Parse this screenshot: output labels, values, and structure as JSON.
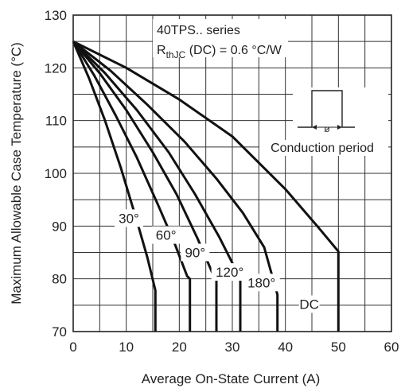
{
  "chart_data": {
    "type": "line",
    "xlabel": "Average On-State Current (A)",
    "ylabel": "Maximum Allowable Case Temperature (°C)",
    "xlim": [
      0,
      60
    ],
    "ylim": [
      70,
      130
    ],
    "xticks": [
      0,
      10,
      20,
      30,
      40,
      50,
      60
    ],
    "yticks": [
      70,
      80,
      90,
      100,
      110,
      120,
      130
    ],
    "grid": true,
    "annotation_title": "40TPS.. series",
    "annotation_rth_main": "R",
    "annotation_rth_sub": "thJC",
    "annotation_rth_rest": " (DC) = 0.6 °C/W",
    "conduction_label": "Conduction period",
    "phi_symbol": "ø",
    "series": [
      {
        "name": "30°",
        "points": [
          [
            0,
            125
          ],
          [
            3,
            118
          ],
          [
            6,
            110
          ],
          [
            9,
            101
          ],
          [
            12,
            91
          ],
          [
            14,
            84
          ],
          [
            15.5,
            77.8
          ],
          [
            15.5,
            70
          ]
        ]
      },
      {
        "name": "60°",
        "points": [
          [
            0,
            125
          ],
          [
            4,
            118.5
          ],
          [
            8,
            111
          ],
          [
            12,
            103
          ],
          [
            16,
            94
          ],
          [
            19,
            87
          ],
          [
            21.5,
            80.5
          ],
          [
            22,
            80
          ],
          [
            22,
            70
          ]
        ]
      },
      {
        "name": "90°",
        "points": [
          [
            0,
            125
          ],
          [
            5,
            119
          ],
          [
            10,
            112
          ],
          [
            15,
            104
          ],
          [
            19.5,
            96
          ],
          [
            23.5,
            87.5
          ],
          [
            26.5,
            80.5
          ],
          [
            27,
            80
          ],
          [
            27,
            70
          ]
        ]
      },
      {
        "name": "120°",
        "points": [
          [
            0,
            125
          ],
          [
            6,
            119
          ],
          [
            12,
            112
          ],
          [
            18,
            104
          ],
          [
            23,
            96
          ],
          [
            27.5,
            88
          ],
          [
            31,
            81
          ],
          [
            31.5,
            80
          ],
          [
            31.5,
            70
          ]
        ]
      },
      {
        "name": "180°",
        "points": [
          [
            0,
            125
          ],
          [
            7,
            119.5
          ],
          [
            14,
            113
          ],
          [
            21,
            106
          ],
          [
            27,
            99
          ],
          [
            32,
            92.5
          ],
          [
            36,
            86
          ],
          [
            38.5,
            77
          ],
          [
            38.5,
            70
          ]
        ]
      },
      {
        "name": "DC",
        "points": [
          [
            0,
            125
          ],
          [
            10,
            120
          ],
          [
            20,
            114
          ],
          [
            30,
            107
          ],
          [
            40,
            97
          ],
          [
            46,
            90
          ],
          [
            50,
            85.2
          ],
          [
            50,
            70
          ]
        ]
      }
    ]
  }
}
